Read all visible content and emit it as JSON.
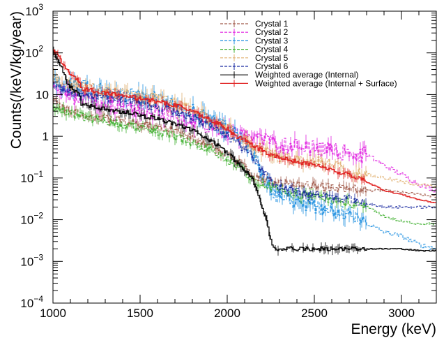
{
  "chart_data": {
    "type": "line",
    "xlabel": "Energy (keV)",
    "ylabel": "Counts(/keV/kg/year)",
    "xlim": [
      1000,
      3200
    ],
    "ylim": [
      0.0001,
      1000
    ],
    "yscale": "log",
    "grid": false,
    "legend_position": "top-right",
    "x_ticks": [
      1000,
      1500,
      2000,
      2500,
      3000
    ],
    "x_tick_labels": [
      "1000",
      "1500",
      "2000",
      "2500",
      "3000"
    ],
    "y_ticks": [
      0.0001,
      0.001,
      0.01,
      0.1,
      1,
      10,
      100,
      1000
    ],
    "y_tick_labels": [
      {
        "base": "10",
        "exp": "−4"
      },
      {
        "base": "10",
        "exp": "−3"
      },
      {
        "base": "10",
        "exp": "−2"
      },
      {
        "base": "10",
        "exp": "−1"
      },
      {
        "base": "1",
        "exp": ""
      },
      {
        "base": "10",
        "exp": ""
      },
      {
        "base": "10",
        "exp": "2"
      },
      {
        "base": "10",
        "exp": "3"
      }
    ],
    "series": [
      {
        "name": "Crystal 1",
        "color": "#a05a4a",
        "dash": true,
        "noise": 0.1,
        "x": [
          1000,
          1050,
          1100,
          1150,
          1200,
          1300,
          1400,
          1500,
          1600,
          1700,
          1800,
          1900,
          2000,
          2100,
          2150,
          2200,
          2250,
          2300,
          2400,
          2500,
          2600,
          2700,
          2800,
          2900,
          3000,
          3100,
          3200
        ],
        "y": [
          7,
          5,
          4,
          3.6,
          3.2,
          2.7,
          2.3,
          1.9,
          1.6,
          1.3,
          0.9,
          0.55,
          0.35,
          0.18,
          0.12,
          0.09,
          0.08,
          0.075,
          0.07,
          0.065,
          0.06,
          0.055,
          0.05,
          0.05,
          0.045,
          0.04,
          0.035
        ]
      },
      {
        "name": "Crystal 2",
        "color": "#e020e0",
        "dash": true,
        "noise": 0.2,
        "x": [
          1000,
          1050,
          1100,
          1150,
          1200,
          1300,
          1400,
          1500,
          1600,
          1700,
          1800,
          1900,
          2000,
          2100,
          2150,
          2200,
          2250,
          2300,
          2400,
          2500,
          2600,
          2700,
          2800,
          2900,
          3000,
          3100,
          3200
        ],
        "y": [
          16,
          11,
          9,
          8,
          7,
          6,
          5,
          4.2,
          3.6,
          3.0,
          2.3,
          1.7,
          1.2,
          1.0,
          0.9,
          0.8,
          0.7,
          0.6,
          0.55,
          0.5,
          0.45,
          0.4,
          0.35,
          0.2,
          0.12,
          0.07,
          0.05
        ]
      },
      {
        "name": "Crystal 3",
        "color": "#1e8fe0",
        "dash": true,
        "noise": 0.18,
        "x": [
          1000,
          1050,
          1100,
          1150,
          1200,
          1300,
          1400,
          1500,
          1600,
          1700,
          1800,
          1900,
          2000,
          2100,
          2150,
          2200,
          2250,
          2300,
          2400,
          2500,
          2600,
          2700,
          2800,
          2900,
          3000,
          3100,
          3200
        ],
        "y": [
          20,
          18,
          16,
          15,
          14,
          12,
          10.5,
          9,
          7.5,
          6,
          4,
          2.5,
          1.5,
          0.7,
          0.35,
          0.12,
          0.05,
          0.035,
          0.025,
          0.02,
          0.018,
          0.012,
          0.008,
          0.005,
          0.004,
          0.0025,
          0.002
        ]
      },
      {
        "name": "Crystal 4",
        "color": "#40b030",
        "dash": true,
        "noise": 0.1,
        "x": [
          1000,
          1050,
          1100,
          1150,
          1200,
          1300,
          1400,
          1500,
          1600,
          1700,
          1800,
          1900,
          2000,
          2100,
          2150,
          2200,
          2250,
          2300,
          2400,
          2500,
          2600,
          2700,
          2800,
          2900,
          3000,
          3100,
          3200
        ],
        "y": [
          5,
          4,
          3.5,
          3.1,
          2.8,
          2.3,
          1.9,
          1.6,
          1.3,
          1.0,
          0.7,
          0.45,
          0.28,
          0.14,
          0.09,
          0.07,
          0.06,
          0.05,
          0.04,
          0.035,
          0.03,
          0.025,
          0.02,
          0.012,
          0.009,
          0.008,
          0.008
        ]
      },
      {
        "name": "Crystal 5",
        "color": "#e0b070",
        "dash": true,
        "noise": 0.14,
        "x": [
          1000,
          1050,
          1100,
          1150,
          1200,
          1300,
          1400,
          1500,
          1600,
          1700,
          1800,
          1900,
          2000,
          2100,
          2150,
          2200,
          2250,
          2300,
          2400,
          2500,
          2600,
          2700,
          2800,
          2900,
          3000,
          3100,
          3200
        ],
        "y": [
          22,
          19,
          17,
          15,
          14,
          12,
          10.5,
          9,
          7.5,
          6,
          4,
          2.5,
          1.6,
          0.9,
          0.6,
          0.45,
          0.35,
          0.3,
          0.28,
          0.25,
          0.2,
          0.15,
          0.12,
          0.1,
          0.08,
          0.07,
          0.06
        ]
      },
      {
        "name": "Crystal 6",
        "color": "#1a2aa0",
        "dash": true,
        "noise": 0.1,
        "x": [
          1000,
          1050,
          1100,
          1150,
          1200,
          1300,
          1400,
          1500,
          1600,
          1700,
          1800,
          1900,
          2000,
          2100,
          2150,
          2200,
          2250,
          2300,
          2400,
          2500,
          2600,
          2700,
          2800,
          2900,
          3000,
          3100,
          3200
        ],
        "y": [
          16,
          14,
          12,
          11,
          10,
          8.5,
          7.2,
          6,
          5,
          4,
          2.8,
          1.7,
          1.0,
          0.5,
          0.3,
          0.14,
          0.08,
          0.06,
          0.045,
          0.04,
          0.035,
          0.03,
          0.025,
          0.02,
          0.02,
          0.02,
          0.02
        ]
      },
      {
        "name": "Weighted average (Internal)",
        "color": "#000000",
        "dash": false,
        "noise": 0.05,
        "x": [
          1000,
          1020,
          1050,
          1080,
          1100,
          1150,
          1160,
          1200,
          1300,
          1400,
          1500,
          1600,
          1700,
          1800,
          1900,
          2000,
          2050,
          2100,
          2150,
          2200,
          2220,
          2250,
          2270,
          2300,
          2400,
          2500,
          2600,
          2700,
          2800,
          2900,
          3000,
          3100,
          3200
        ],
        "y": [
          100,
          80,
          40,
          20,
          15,
          10,
          6,
          5.5,
          4.5,
          3.8,
          3.2,
          2.6,
          2.0,
          1.4,
          0.8,
          0.4,
          0.25,
          0.15,
          0.08,
          0.02,
          0.01,
          0.003,
          0.002,
          0.002,
          0.002,
          0.002,
          0.002,
          0.002,
          0.002,
          0.002,
          0.002,
          0.0018,
          0.0018
        ]
      },
      {
        "name": "Weighted average (Internal + Surface)",
        "color": "#e02020",
        "dash": false,
        "noise": 0.05,
        "x": [
          1000,
          1020,
          1050,
          1080,
          1100,
          1150,
          1160,
          1200,
          1300,
          1400,
          1500,
          1600,
          1700,
          1800,
          1900,
          2000,
          2050,
          2100,
          2150,
          2200,
          2250,
          2300,
          2400,
          2500,
          2600,
          2700,
          2800,
          2900,
          3000,
          3100,
          3200
        ],
        "y": [
          120,
          100,
          60,
          40,
          30,
          20,
          14,
          13,
          11,
          9.5,
          8,
          6.8,
          5.5,
          4,
          2.5,
          1.5,
          1.0,
          0.8,
          0.6,
          0.45,
          0.35,
          0.3,
          0.25,
          0.2,
          0.15,
          0.12,
          0.08,
          0.05,
          0.04,
          0.03,
          0.025
        ]
      }
    ]
  }
}
